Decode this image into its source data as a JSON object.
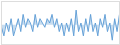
{
  "chart_data": {
    "type": "area",
    "values": [
      3,
      1,
      4,
      2,
      5,
      1,
      3,
      5,
      2,
      6,
      3,
      5,
      4,
      2,
      6,
      3,
      5,
      4,
      3,
      5,
      4,
      6,
      3,
      5,
      2,
      4,
      1,
      4,
      2,
      5,
      1,
      7,
      2,
      4,
      1,
      5,
      2,
      6,
      2,
      4,
      1,
      5,
      3,
      6,
      2,
      4,
      0,
      5,
      2,
      6
    ],
    "baseline": 3.5,
    "color": "#5b9bd5",
    "xlim": [
      0,
      49
    ],
    "ylim": [
      -1,
      9
    ],
    "tick_labels": false
  }
}
